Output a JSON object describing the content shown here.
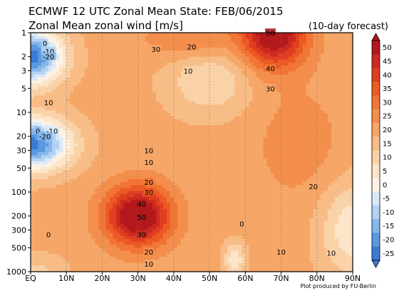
{
  "header": {
    "title": "ECMWF 12 UTC Zonal Mean State: FEB/06/2015",
    "subtitle": "Zonal Mean zonal wind [m/s]",
    "forecast": "(10-day forecast)",
    "credit": "Plot produced by FU-Berlin"
  },
  "chart_data": {
    "type": "heatmap",
    "title": "ECMWF 12 UTC Zonal Mean State: FEB/06/2015",
    "subtitle": "Zonal Mean zonal wind [m/s]",
    "annotation": "(10-day forecast)",
    "xlabel": "",
    "ylabel": "",
    "x_ticks": [
      "EQ",
      "10N",
      "20N",
      "30N",
      "40N",
      "50N",
      "60N",
      "70N",
      "80N",
      "90N"
    ],
    "x_range": [
      0,
      90
    ],
    "y_ticks": [
      1,
      2,
      3,
      5,
      10,
      20,
      30,
      50,
      100,
      200,
      300,
      500,
      1000
    ],
    "y_range": [
      1000,
      1
    ],
    "y_scale": "log",
    "contour_interval": 5,
    "zero_contour": "bold",
    "colorbar": {
      "ticks": [
        50,
        45,
        40,
        35,
        30,
        25,
        20,
        15,
        10,
        5,
        0,
        -5,
        -10,
        -15,
        -20,
        -25
      ],
      "colors": [
        "#b3191c",
        "#cc2a1f",
        "#e03e21",
        "#ec5a24",
        "#f27535",
        "#f48e4c",
        "#f6a667",
        "#f8bc86",
        "#fad2a8",
        "#fce5c8",
        "#fdf2e3",
        "#dbe9f7",
        "#b3d2f1",
        "#86b7ea",
        "#5a98e0",
        "#3a7bd5"
      ]
    },
    "features": [
      {
        "type": "jet",
        "label": "50",
        "lat": 30,
        "pressure_hPa": 200,
        "max_ms": 55
      },
      {
        "type": "jet",
        "label": "50",
        "lat": 68,
        "pressure_hPa": 1,
        "max_ms": 55
      },
      {
        "type": "easterly",
        "label": "-20",
        "lat": 3,
        "pressure_hPa": 2,
        "min_ms": -25
      },
      {
        "type": "easterly",
        "label": "-20",
        "lat": 4,
        "pressure_hPa": 25,
        "min_ms": -25
      },
      {
        "type": "easterly",
        "lat": 57,
        "pressure_hPa": 600,
        "min_ms": -3
      }
    ],
    "contour_labels": [
      {
        "value": "0",
        "lat": 4,
        "p": 1.35
      },
      {
        "value": "-10",
        "lat": 5,
        "p": 1.7
      },
      {
        "value": "-20",
        "lat": 5,
        "p": 2.0
      },
      {
        "value": "30",
        "lat": 35,
        "p": 1.6
      },
      {
        "value": "20",
        "lat": 45,
        "p": 1.5
      },
      {
        "value": "10",
        "lat": 44,
        "p": 3.0
      },
      {
        "value": "50",
        "lat": 67,
        "p": 1.0
      },
      {
        "value": "40",
        "lat": 67,
        "p": 2.8
      },
      {
        "value": "30",
        "lat": 67,
        "p": 5.0
      },
      {
        "value": "10",
        "lat": 5,
        "p": 7.5
      },
      {
        "value": "0",
        "lat": 2,
        "p": 17
      },
      {
        "value": "-10",
        "lat": 6,
        "p": 17
      },
      {
        "value": "-20",
        "lat": 4,
        "p": 20
      },
      {
        "value": "10",
        "lat": 33,
        "p": 30
      },
      {
        "value": "10",
        "lat": 33,
        "p": 42
      },
      {
        "value": "20",
        "lat": 79,
        "p": 85
      },
      {
        "value": "20",
        "lat": 33,
        "p": 75
      },
      {
        "value": "30",
        "lat": 33,
        "p": 100
      },
      {
        "value": "40",
        "lat": 31,
        "p": 140
      },
      {
        "value": "50",
        "lat": 31,
        "p": 205
      },
      {
        "value": "30",
        "lat": 31,
        "p": 340
      },
      {
        "value": "20",
        "lat": 33,
        "p": 560
      },
      {
        "value": "10",
        "lat": 33,
        "p": 800
      },
      {
        "value": "0",
        "lat": 5,
        "p": 340
      },
      {
        "value": "0",
        "lat": 59,
        "p": 250
      },
      {
        "value": "10",
        "lat": 70,
        "p": 560
      },
      {
        "value": "10",
        "lat": 84,
        "p": 580
      }
    ]
  }
}
